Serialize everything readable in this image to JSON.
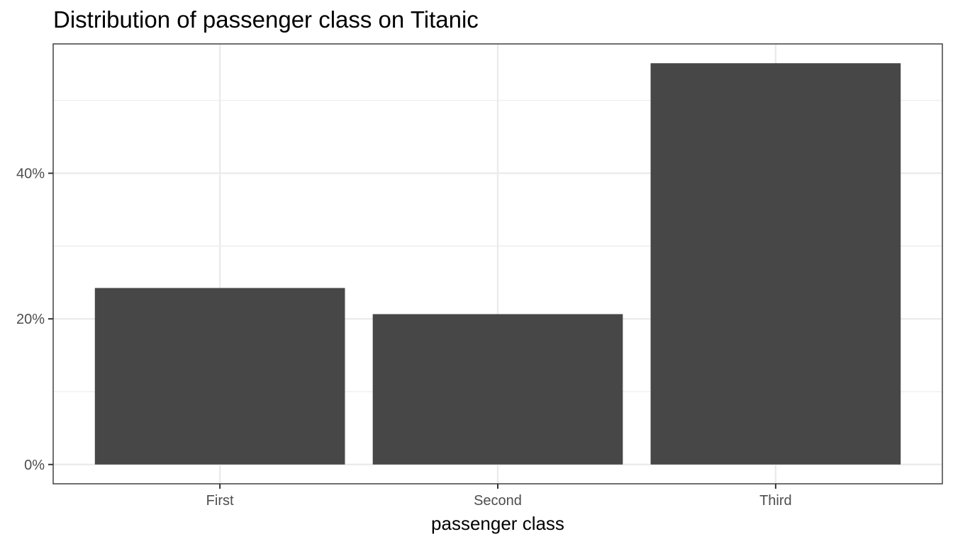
{
  "chart_data": {
    "type": "bar",
    "title": "Distribution of passenger class on Titanic",
    "xlabel": "passenger class",
    "ylabel": "",
    "categories": [
      "First",
      "Second",
      "Third"
    ],
    "values": [
      0.2424,
      0.2065,
      0.5511
    ],
    "ylim": [
      -0.0265,
      0.5776
    ],
    "yticks": [
      0,
      0.2,
      0.4
    ],
    "ytick_labels": [
      "0%",
      "20%",
      "40%"
    ],
    "y_minor": [
      0.1,
      0.3,
      0.5
    ],
    "grid": true,
    "legend": "none",
    "colors": {
      "bar": "#474747",
      "grid": "#ebebeb",
      "border": "#333333"
    }
  }
}
